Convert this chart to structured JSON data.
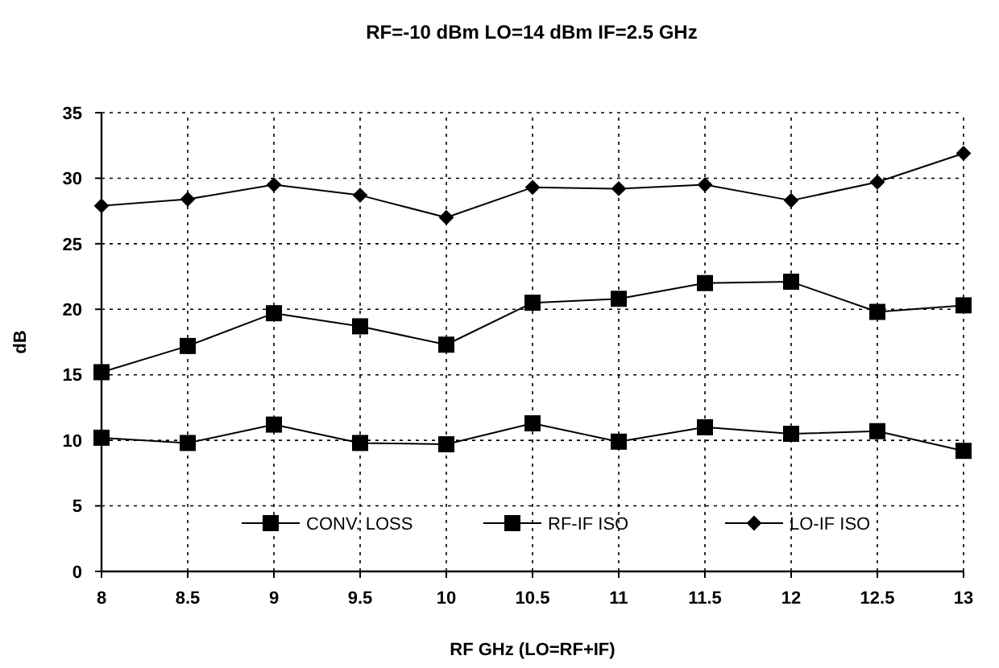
{
  "chart_data": {
    "type": "line",
    "title": "RF=-10 dBm LO=14 dBm IF=2.5 GHz",
    "xlabel": "RF GHz (LO=RF+IF)",
    "ylabel": "dB",
    "x": [
      8,
      8.5,
      9,
      9.5,
      10,
      10.5,
      11,
      11.5,
      12,
      12.5,
      13
    ],
    "series": [
      {
        "name": "CONV. LOSS",
        "color": "#000000",
        "marker": "square",
        "values": [
          10.2,
          9.8,
          11.2,
          9.8,
          9.7,
          11.3,
          9.9,
          11.0,
          10.5,
          10.7,
          9.2
        ]
      },
      {
        "name": "RF-IF ISO",
        "color": "#000000",
        "marker": "square",
        "values": [
          15.2,
          17.2,
          19.7,
          18.7,
          17.3,
          20.5,
          20.8,
          22.0,
          22.1,
          19.8,
          20.3
        ]
      },
      {
        "name": "LO-IF ISO",
        "color": "#000000",
        "marker": "diamond",
        "values": [
          27.9,
          28.4,
          29.5,
          28.7,
          27.0,
          29.3,
          29.2,
          29.5,
          28.3,
          29.7,
          31.9
        ]
      }
    ],
    "xlim": [
      8,
      13
    ],
    "xticks": [
      8,
      8.5,
      9,
      9.5,
      10,
      10.5,
      11,
      11.5,
      12,
      12.5,
      13
    ],
    "ylim": [
      0,
      35
    ],
    "yticks": [
      0,
      5,
      10,
      15,
      20,
      25,
      30,
      35
    ],
    "grid": true,
    "legend": "bottom",
    "line_style": "solid"
  }
}
